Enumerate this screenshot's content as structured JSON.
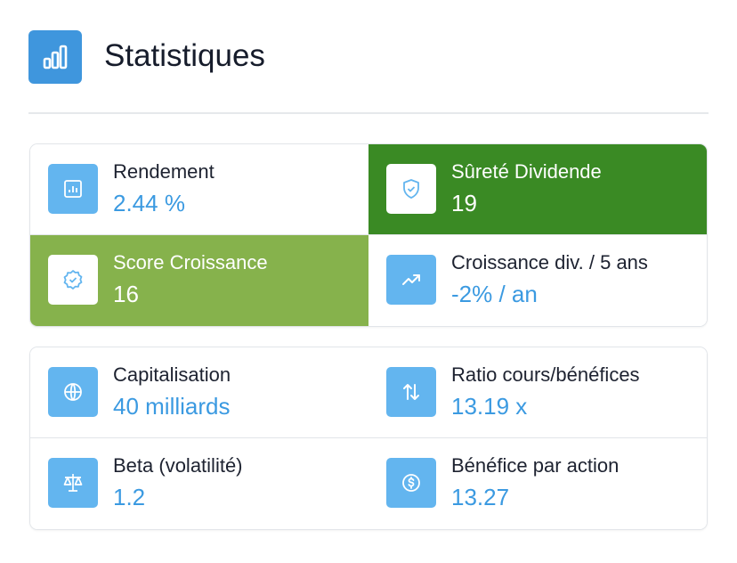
{
  "header": {
    "title": "Statistiques"
  },
  "groups": [
    {
      "items": [
        {
          "label": "Rendement",
          "value": "2.44 %"
        },
        {
          "label": "Sûreté Dividende",
          "value": "19"
        },
        {
          "label": "Score Croissance",
          "value": "16"
        },
        {
          "label": "Croissance div. / 5 ans",
          "value": "-2% / an"
        }
      ]
    },
    {
      "items": [
        {
          "label": "Capitalisation",
          "value": "40 milliards"
        },
        {
          "label": "Ratio cours/bénéfices",
          "value": "13.19 x"
        },
        {
          "label": "Beta (volatilité)",
          "value": "1.2"
        },
        {
          "label": "Bénéfice par action",
          "value": "13.27"
        }
      ]
    }
  ]
}
